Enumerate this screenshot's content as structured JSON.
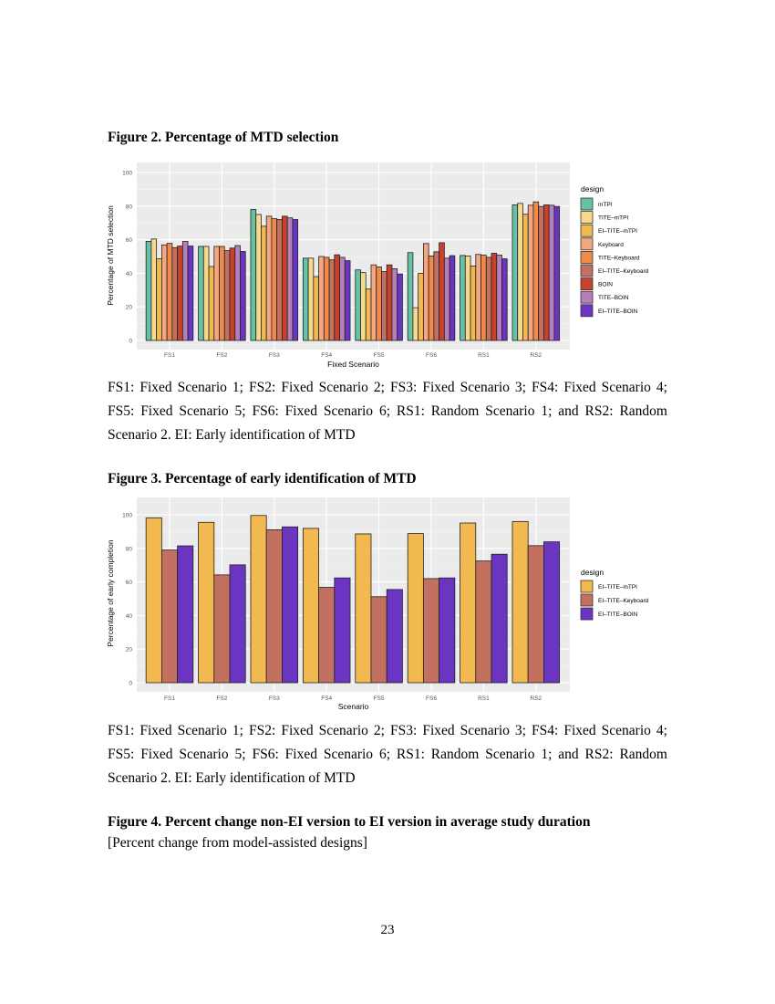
{
  "figures": [
    {
      "title": "Figure 2. Percentage of MTD selection",
      "caption": "FS1: Fixed Scenario 1; FS2: Fixed Scenario 2; FS3: Fixed Scenario 3; FS4: Fixed Scenario 4; FS5: Fixed Scenario 5; FS6: Fixed Scenario 6; RS1: Random Scenario 1; and RS2: Random Scenario 2. EI: Early identification of MTD"
    },
    {
      "title": "Figure 3. Percentage of early identification of MTD",
      "caption": "FS1: Fixed Scenario 1; FS2: Fixed Scenario 2; FS3: Fixed Scenario 3; FS4: Fixed Scenario 4; FS5: Fixed Scenario 5; FS6: Fixed Scenario 6; RS1: Random Scenario 1; and RS2: Random Scenario 2. EI: Early identification of MTD"
    },
    {
      "title": "Figure 4. Percent change non-EI version to EI version in average study duration",
      "subtitle": "[Percent change from model-assisted designs]"
    }
  ],
  "page_number": "23",
  "chart_data": [
    {
      "type": "bar",
      "xlabel": "Fixed Scenario",
      "ylabel": "Percentage of MTD selection",
      "ylim": [
        0,
        100
      ],
      "yticks": [
        0,
        20,
        40,
        60,
        80,
        100
      ],
      "grid": true,
      "legend_title": "design",
      "legend_position": "right",
      "categories": [
        "FS1",
        "FS2",
        "FS3",
        "FS4",
        "FS5",
        "FS6",
        "RS1",
        "RS2"
      ],
      "series": [
        {
          "name": "mTPI",
          "color": "#66c2a5",
          "values": [
            59,
            56,
            78,
            49,
            42,
            52.3,
            50.6,
            80.7
          ]
        },
        {
          "name": "TITE–mTPI",
          "color": "#f6d98e",
          "values": [
            60.4,
            56,
            75,
            49,
            40.4,
            19.5,
            50.3,
            81.6
          ]
        },
        {
          "name": "EI–TITE–mTPI",
          "color": "#f2b950",
          "values": [
            48.6,
            44,
            68,
            38,
            30.6,
            40,
            44.3,
            75.1
          ]
        },
        {
          "name": "Keyboard",
          "color": "#f4a582",
          "values": [
            56.9,
            56,
            74,
            50,
            45,
            57.7,
            51.2,
            80.5
          ]
        },
        {
          "name": "TITE–Keyboard",
          "color": "#f08a4b",
          "values": [
            57.8,
            56,
            72.5,
            49.5,
            43.8,
            50.3,
            50.8,
            82.5
          ]
        },
        {
          "name": "EI–TITE–Keyboard",
          "color": "#c27060",
          "values": [
            55.3,
            53.5,
            72,
            48,
            41,
            52.8,
            49.5,
            79.8
          ]
        },
        {
          "name": "BOIN",
          "color": "#c8412c",
          "values": [
            56.2,
            55,
            74,
            51,
            45,
            58.2,
            51.9,
            80.7
          ]
        },
        {
          "name": "TITE–BOIN",
          "color": "#b57fb8",
          "values": [
            59,
            56.5,
            73,
            49.5,
            42.7,
            49,
            50.8,
            80.5
          ]
        },
        {
          "name": "EI–TITE–BOIN",
          "color": "#6a35c0",
          "values": [
            56.2,
            53,
            72,
            47.5,
            39.6,
            50.5,
            48.6,
            79.8
          ]
        }
      ]
    },
    {
      "type": "bar",
      "xlabel": "Scenario",
      "ylabel": "Percentage of early completion",
      "ylim": [
        0,
        100
      ],
      "yticks": [
        0,
        20,
        40,
        60,
        80,
        100
      ],
      "grid": true,
      "legend_title": "design",
      "legend_position": "right",
      "categories": [
        "FS1",
        "FS2",
        "FS3",
        "FS4",
        "FS5",
        "FS6",
        "RS1",
        "RS2"
      ],
      "series": [
        {
          "name": "EI–TITE–mTPI",
          "color": "#f2b950",
          "values": [
            98.2,
            95.5,
            99.6,
            91.9,
            88.6,
            88.8,
            95.1,
            96
          ]
        },
        {
          "name": "EI–TITE–Keyboard",
          "color": "#c27060",
          "values": [
            79,
            64.2,
            91.1,
            56.8,
            51.2,
            62,
            72.5,
            81.6
          ]
        },
        {
          "name": "EI–TITE–BOIN",
          "color": "#6a35c0",
          "values": [
            81.5,
            70.2,
            92.8,
            62.4,
            55.5,
            62.4,
            76.5,
            83.9
          ]
        }
      ]
    }
  ]
}
